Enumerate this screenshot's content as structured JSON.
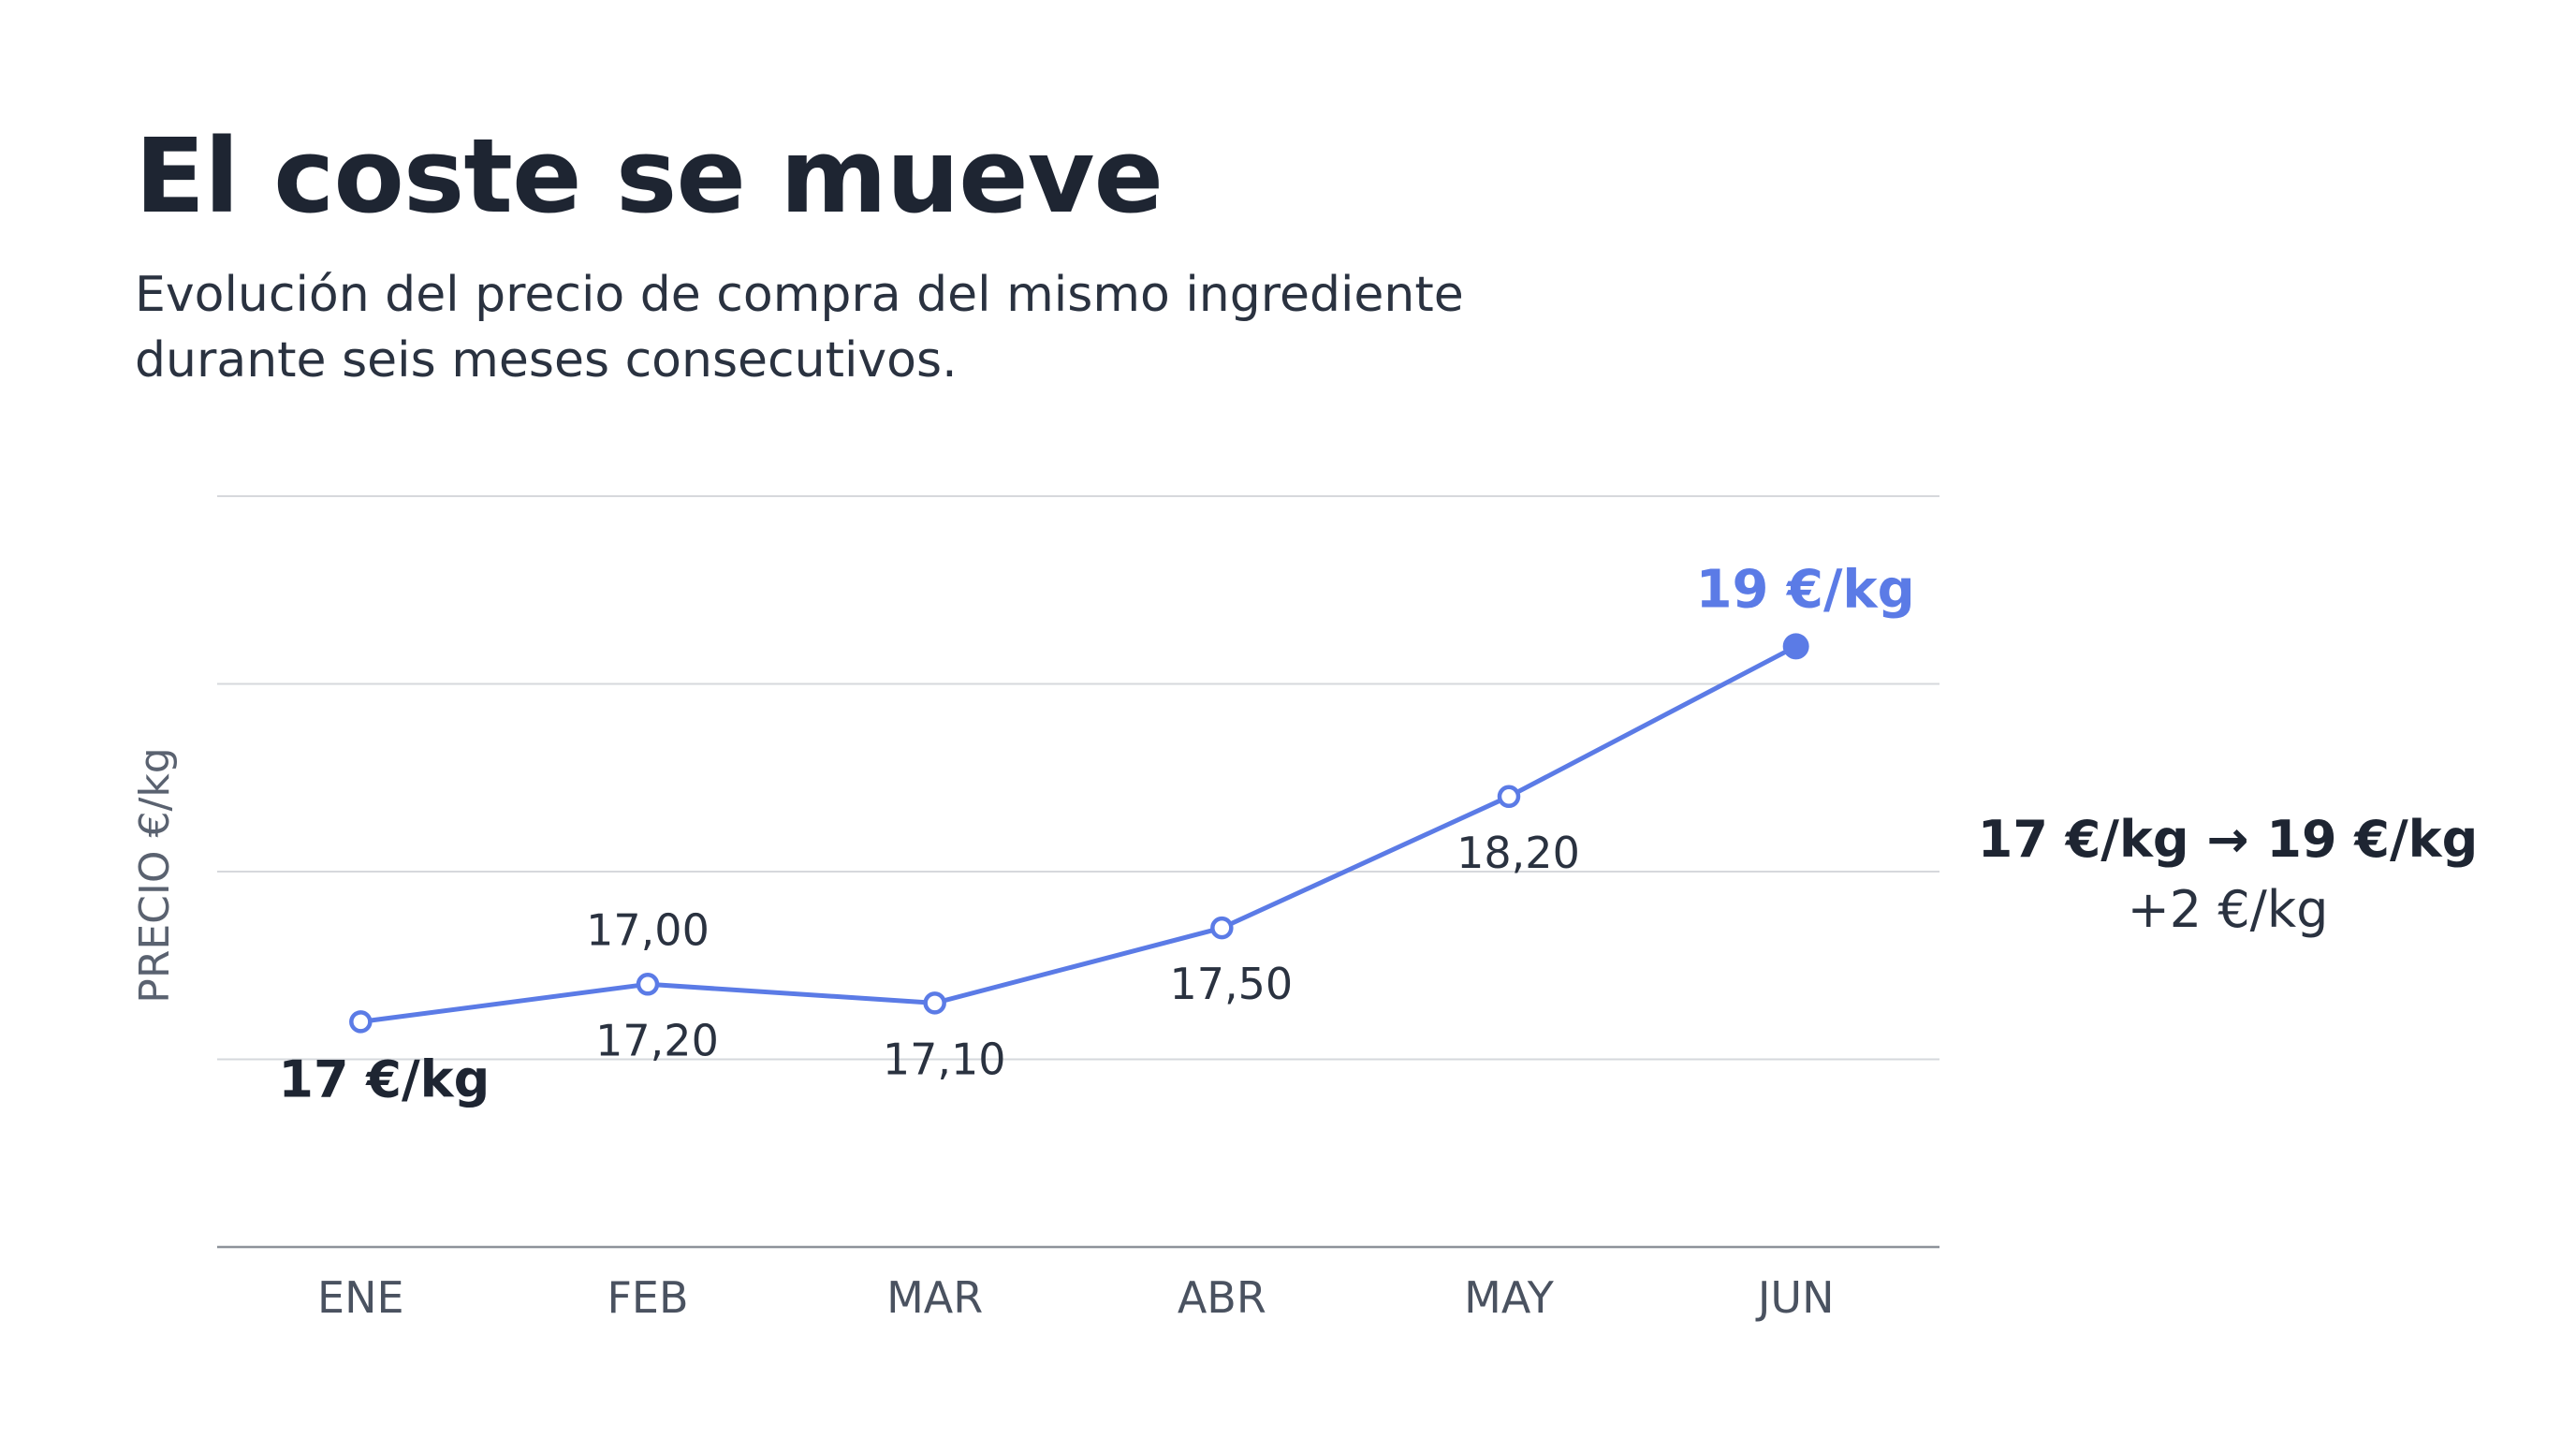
{
  "title": "El coste se mueve",
  "subtitle": "Evolución del precio de compra del mismo ingrediente durante seis meses consecutivos.",
  "summary": {
    "change": "17 €/kg → 19 €/kg",
    "delta": "+2 €/kg"
  },
  "chart_data": {
    "type": "line",
    "title": "El coste se mueve",
    "subtitle": "Evolución del precio de compra del mismo ingrediente durante seis meses consecutivos.",
    "xlabel": "",
    "ylabel": "PRECIO €/kg",
    "categories": [
      "ENE",
      "FEB",
      "MAR",
      "ABR",
      "MAY",
      "JUN"
    ],
    "series": [
      {
        "values": [
          17.0,
          17.2,
          17.1,
          17.5,
          18.2,
          19.0
        ],
        "color": "#5b7be6"
      }
    ],
    "data_labels": [
      "17 €/kg",
      "17,20",
      "17,10",
      "17,50",
      "18,20",
      "19 €/kg"
    ],
    "annotations": [
      {
        "category": "FEB",
        "text": "17,00"
      }
    ],
    "ylim": [
      15.8,
      19.8
    ],
    "grid": true,
    "legend": "none",
    "colors": {
      "line": "#5b7be6",
      "grid": "#d6d8dc",
      "axis_text": "#4a5260",
      "label_text": "#2a3240",
      "highlight": "#5b7be6"
    }
  }
}
